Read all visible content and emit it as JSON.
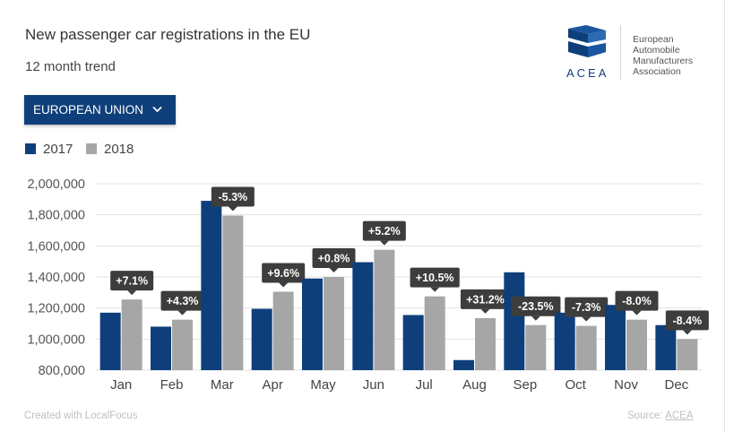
{
  "header": {
    "title": "New passenger car registrations in the EU",
    "subtitle": "12 month trend"
  },
  "logo": {
    "acronym": "ACEA",
    "lines": [
      "European",
      "Automobile",
      "Manufacturers",
      "Association"
    ]
  },
  "dropdown": {
    "label": "EUROPEAN UNION",
    "icon": "chevron-down-icon"
  },
  "legend": [
    {
      "label": "2017",
      "color": "#0f3f7a"
    },
    {
      "label": "2018",
      "color": "#a6a6a6"
    }
  ],
  "footer": {
    "credit": "Created with LocalFocus",
    "source_prefix": "Source:",
    "source_link": "ACEA"
  },
  "chart_data": {
    "type": "bar",
    "categories": [
      "Jan",
      "Feb",
      "Mar",
      "Apr",
      "May",
      "Jun",
      "Jul",
      "Aug",
      "Sep",
      "Oct",
      "Nov",
      "Dec"
    ],
    "series": [
      {
        "name": "2017",
        "color": "#0f3f7a",
        "values": [
          1170000,
          1080000,
          1890000,
          1195000,
          1390000,
          1495000,
          1155000,
          865000,
          1430000,
          1170000,
          1220000,
          1090000
        ]
      },
      {
        "name": "2018",
        "color": "#a6a6a6",
        "values": [
          1255000,
          1125000,
          1795000,
          1305000,
          1400000,
          1575000,
          1275000,
          1135000,
          1090000,
          1085000,
          1125000,
          1000000
        ]
      }
    ],
    "annotations": [
      "+7.1%",
      "+4.3%",
      "-5.3%",
      "+9.6%",
      "+0.8%",
      "+5.2%",
      "+10.5%",
      "+31.2%",
      "-23.5%",
      "-7.3%",
      "-8.0%",
      "-8.4%"
    ],
    "ylim": [
      800000,
      2000000
    ],
    "yticks": [
      800000,
      1000000,
      1200000,
      1400000,
      1600000,
      1800000,
      2000000
    ],
    "ytick_labels": [
      "800,000",
      "1,000,000",
      "1,200,000",
      "1,400,000",
      "1,600,000",
      "1,800,000",
      "2,000,000"
    ],
    "grid": true,
    "legend_position": "top-left"
  }
}
